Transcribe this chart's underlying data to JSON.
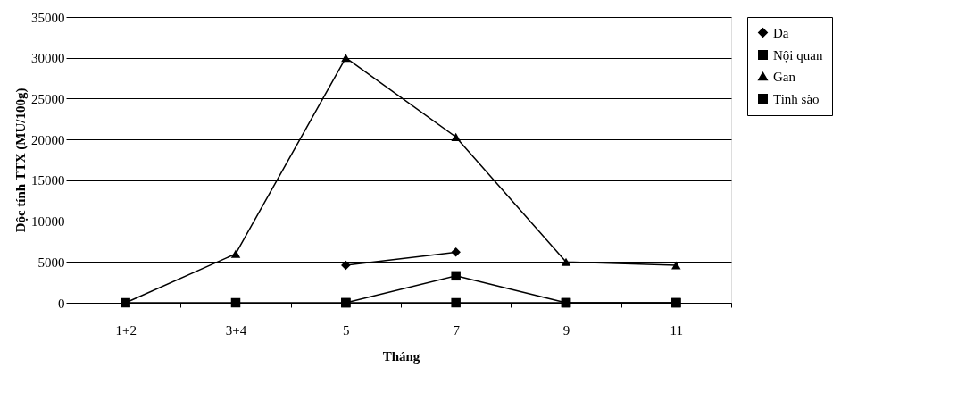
{
  "chart_data": {
    "type": "line",
    "xlabel": "Tháng",
    "ylabel": "Độc tính TTX (MU/100g)",
    "categories": [
      "1+2",
      "3+4",
      "5",
      "7",
      "9",
      "11"
    ],
    "series": [
      {
        "name": "Da",
        "color": "#000000",
        "marker": "diamond",
        "values": [
          null,
          null,
          4600,
          6200,
          null,
          null
        ]
      },
      {
        "name": "Nội quan",
        "color": "#000000",
        "marker": "square",
        "values": [
          null,
          null,
          0,
          3300,
          0,
          0
        ]
      },
      {
        "name": "Gan",
        "color": "#000000",
        "marker": "triangle",
        "values": [
          0,
          6000,
          30000,
          20300,
          5000,
          4600
        ]
      },
      {
        "name": " Tinh sào",
        "color": "#000000",
        "marker": "square",
        "values": [
          0,
          0,
          0,
          0,
          0,
          0
        ]
      }
    ],
    "ylim": [
      0,
      35000
    ],
    "yticks": [
      0,
      5000,
      10000,
      15000,
      20000,
      25000,
      30000,
      35000
    ],
    "grid": "y",
    "legend": "right"
  }
}
